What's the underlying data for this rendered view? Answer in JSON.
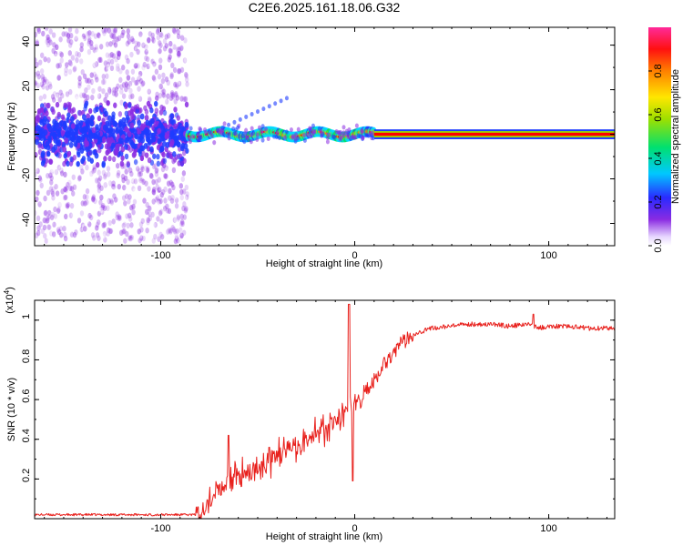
{
  "title": "C2E6.2025.161.18.06.G32",
  "colors": {
    "snr_line": "#e8201c",
    "background": "#ffffff",
    "axis": "#000000"
  },
  "chart_data": [
    {
      "type": "heatmap",
      "xlabel": "Height of straight line (km)",
      "ylabel": "Frequency (Hz)",
      "xlim": [
        -165,
        134
      ],
      "ylim": [
        -50,
        48
      ],
      "x_ticks": [
        "-100",
        "0",
        "100"
      ],
      "y_ticks": [
        "-40",
        "-20",
        "0",
        "20",
        "40"
      ],
      "colorbar": {
        "label": "Normalized spectral amplitude",
        "range": [
          0,
          1
        ],
        "ticks": [
          "0.0",
          "0.2",
          "0.4",
          "0.6",
          "0.8"
        ],
        "colormap": [
          "#ffffff",
          "#8a2be2",
          "#1e3cff",
          "#00d8ff",
          "#00e060",
          "#9ee000",
          "#ffe000",
          "#ff8000",
          "#ff0000",
          "#ff2090"
        ]
      },
      "regions": [
        {
          "x": [
            -165,
            -86
          ],
          "description": "broad scattered purple noise",
          "freq_spread": 48,
          "amplitude": 0.15
        },
        {
          "x": [
            -86,
            10
          ],
          "description": "narrow band near 0 Hz with yellow/red spots",
          "freq_spread": 3,
          "amplitude": 0.6
        },
        {
          "x": [
            10,
            134
          ],
          "description": "constant band at 0 Hz",
          "freq_spread": 1,
          "amplitude": 1.0
        }
      ]
    },
    {
      "type": "line",
      "xlabel": "Height of straight line (km)",
      "ylabel": "SNR (10 * v/v)",
      "y_scale_label": "(x10",
      "y_scale_exponent": "4",
      "xlim": [
        -165,
        134
      ],
      "ylim": [
        0,
        1.1
      ],
      "x_ticks": [
        "-100",
        "0",
        "100"
      ],
      "y_ticks": [
        "0.2",
        "0.4",
        "0.6",
        "0.8",
        "1"
      ],
      "series": [
        {
          "x": [
            -165,
            -130,
            -100,
            -90,
            -82,
            -75,
            -70,
            -65,
            -60,
            -55,
            -50,
            -45,
            -40,
            -35,
            -30,
            -25,
            -20,
            -15,
            -10,
            -5,
            0,
            5,
            10,
            15,
            20,
            25,
            30,
            40,
            50,
            60,
            70,
            80,
            90,
            95,
            100,
            110,
            120,
            134
          ],
          "y": [
            0.02,
            0.02,
            0.02,
            0.02,
            0.02,
            0.08,
            0.16,
            0.2,
            0.22,
            0.22,
            0.24,
            0.28,
            0.32,
            0.34,
            0.37,
            0.39,
            0.42,
            0.45,
            0.49,
            0.54,
            0.58,
            0.63,
            0.7,
            0.78,
            0.84,
            0.89,
            0.93,
            0.96,
            0.97,
            0.98,
            0.98,
            0.97,
            0.98,
            0.96,
            0.97,
            0.97,
            0.96,
            0.96
          ]
        }
      ],
      "spikes": [
        {
          "x": -65,
          "y": 0.42
        },
        {
          "x": -44,
          "y": 0.36
        },
        {
          "x": -3,
          "y": 1.08
        },
        {
          "x": -1,
          "y": 0.19
        },
        {
          "x": 92,
          "y": 1.03
        }
      ]
    }
  ]
}
